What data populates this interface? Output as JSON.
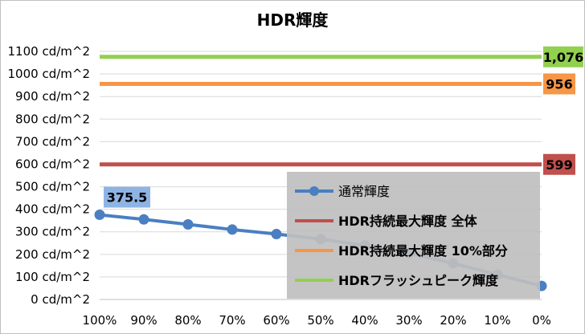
{
  "chart_data": {
    "type": "line",
    "title": "HDR輝度",
    "xlabel": "",
    "ylabel": "",
    "categories": [
      "100%",
      "90%",
      "80%",
      "70%",
      "60%",
      "50%",
      "40%",
      "30%",
      "20%",
      "10%",
      "0%"
    ],
    "y_ticks": [
      "0 cd/m^2",
      "100 cd/m^2",
      "200 cd/m^2",
      "300 cd/m^2",
      "400 cd/m^2",
      "500 cd/m^2",
      "600 cd/m^2",
      "700 cd/m^2",
      "800 cd/m^2",
      "900 cd/m^2",
      "1000 cd/m^2",
      "1100 cd/m^2"
    ],
    "ylim": [
      0,
      1150
    ],
    "grid": "horizontal",
    "series": [
      {
        "name": "通常輝度",
        "kind": "line-markers",
        "color": "#4a7fc1",
        "values": [
          375.5,
          355,
          333,
          310,
          290,
          268,
          240,
          205,
          160,
          110,
          60
        ],
        "labels": [
          "375.5",
          "",
          "",
          "",
          "",
          "",
          "",
          "",
          "",
          "",
          ""
        ]
      },
      {
        "name": "HDR持続最大輝度 全体",
        "kind": "constant",
        "color": "#c0504d",
        "value": 599,
        "label": "599"
      },
      {
        "name": "HDR持続最大輝度 10%部分",
        "kind": "constant",
        "color": "#f79646",
        "value": 956,
        "label": "956"
      },
      {
        "name": "HDRフラッシュピーク輝度",
        "kind": "constant",
        "color": "#92d050",
        "value": 1076,
        "label": "1,076"
      }
    ],
    "legend": {
      "position": "bottom-right",
      "entries": [
        "通常輝度",
        "HDR持続最大輝度 全体",
        "HDR持続最大輝度 10%部分",
        "HDRフラッシュピーク輝度"
      ]
    }
  }
}
